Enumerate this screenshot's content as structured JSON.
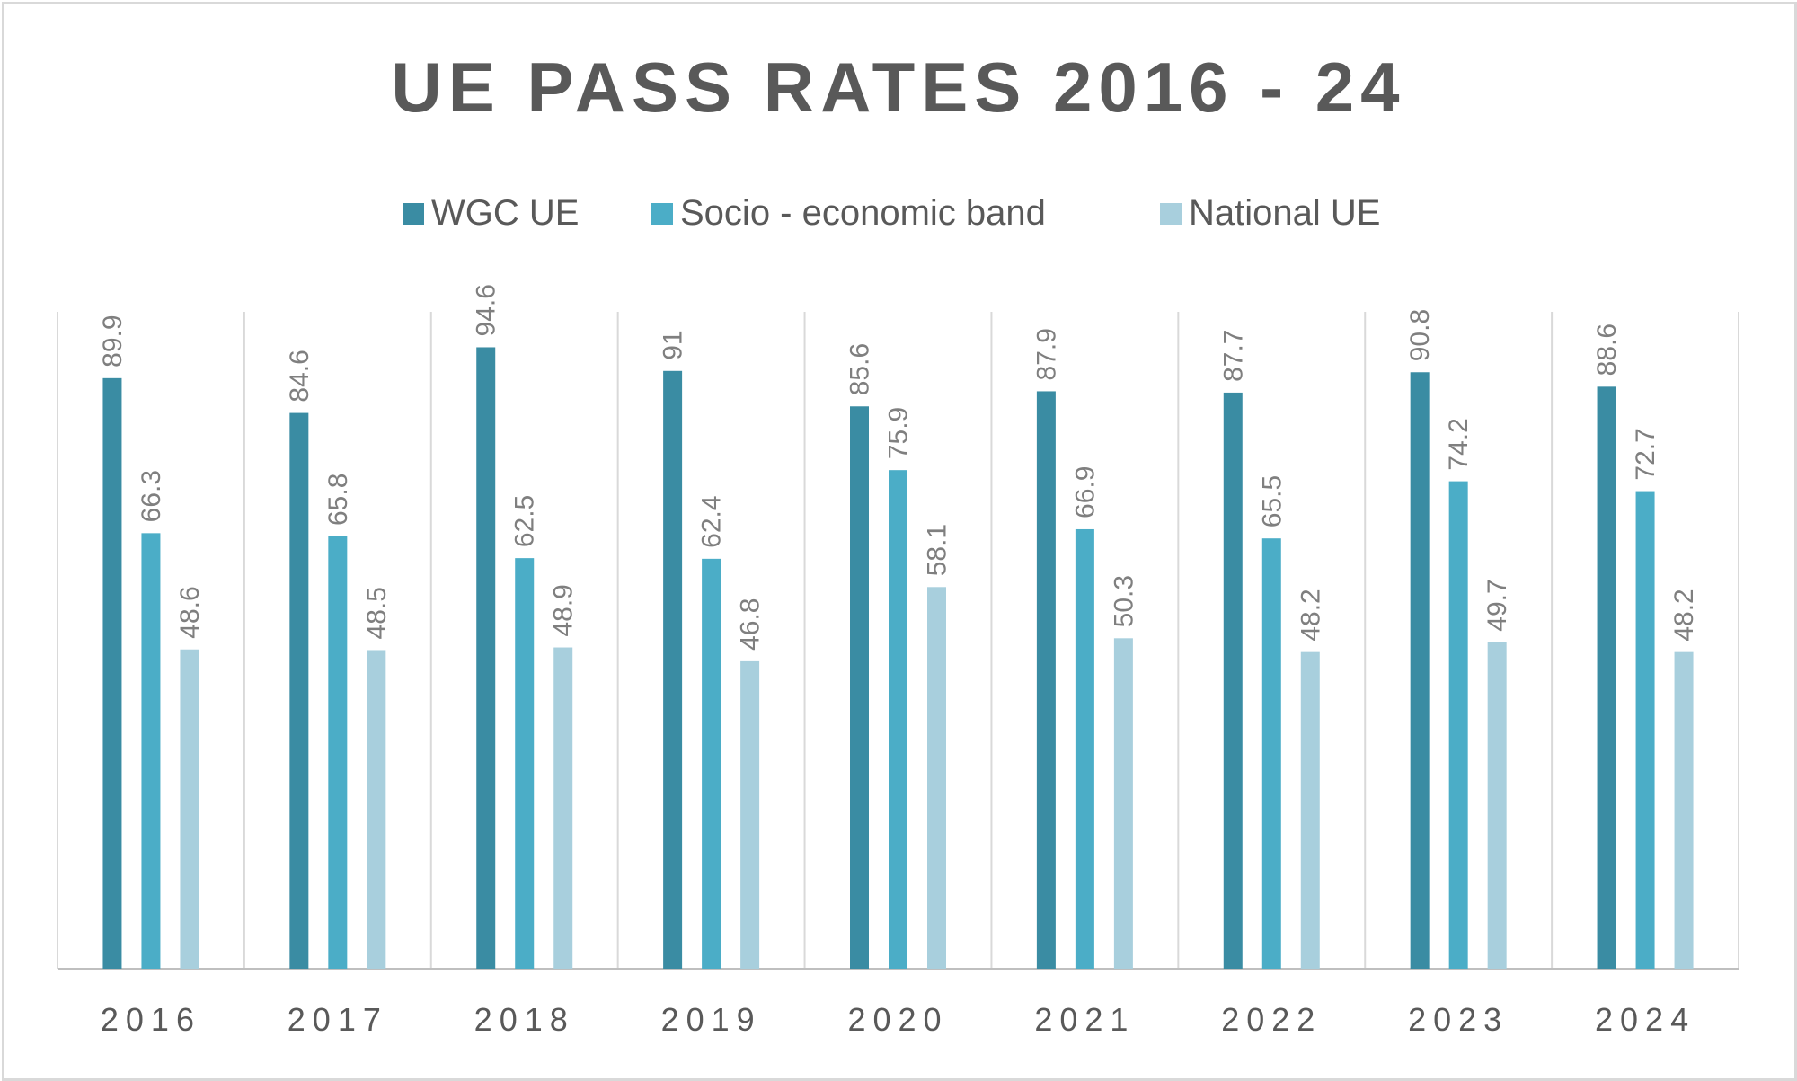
{
  "chart_data": {
    "type": "bar",
    "title": "UE PASS RATES 2016 - 24",
    "categories": [
      "2016",
      "2017",
      "2018",
      "2019",
      "2020",
      "2021",
      "2022",
      "2023",
      "2024"
    ],
    "series": [
      {
        "name": "WGC UE",
        "color": "#3a8ca3",
        "values": [
          89.9,
          84.6,
          94.6,
          91,
          85.6,
          87.9,
          87.7,
          90.8,
          88.6
        ]
      },
      {
        "name": "Socio - economic band",
        "color": "#4badc7",
        "values": [
          66.3,
          65.8,
          62.5,
          62.4,
          75.9,
          66.9,
          65.5,
          74.2,
          72.7
        ]
      },
      {
        "name": "National UE",
        "color": "#a8cfdd",
        "values": [
          48.6,
          48.5,
          48.9,
          46.8,
          58.1,
          50.3,
          48.2,
          49.7,
          48.2
        ]
      }
    ],
    "xlabel": "",
    "ylabel": "",
    "ylim": [
      0,
      100
    ],
    "legend": "top",
    "grid": "vertical category separators",
    "data_labels": "rotated, above bars"
  }
}
